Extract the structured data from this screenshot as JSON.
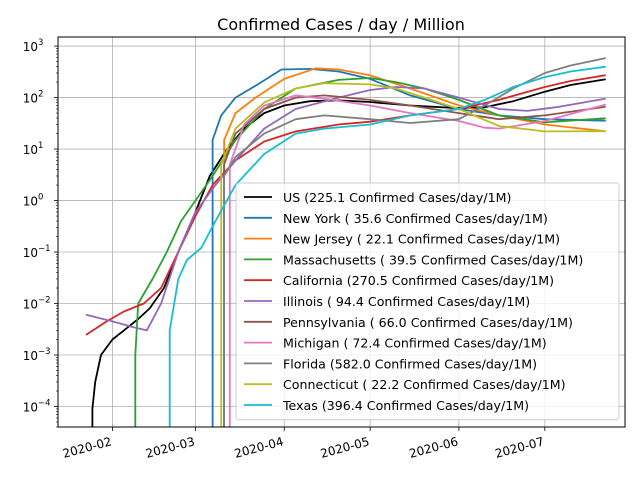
{
  "chart_data": {
    "type": "line",
    "title": "Confirmed Cases / day / Million",
    "xlabel": "",
    "ylabel": "",
    "yscale": "log",
    "ylim": [
      4e-05,
      1500
    ],
    "xlim": [
      "2020-01-13",
      "2020-07-29"
    ],
    "grid": true,
    "legend_position": "lower-right",
    "x_ticks": [
      {
        "date": "2020-02-01",
        "label": "2020-02"
      },
      {
        "date": "2020-03-01",
        "label": "2020-03"
      },
      {
        "date": "2020-04-01",
        "label": "2020-04"
      },
      {
        "date": "2020-05-01",
        "label": "2020-05"
      },
      {
        "date": "2020-06-01",
        "label": "2020-06"
      },
      {
        "date": "2020-07-01",
        "label": "2020-07"
      }
    ],
    "y_ticks": [
      {
        "value": 0.0001,
        "mantissa": "10",
        "exp": "−4"
      },
      {
        "value": 0.001,
        "mantissa": "10",
        "exp": "−3"
      },
      {
        "value": 0.01,
        "mantissa": "10",
        "exp": "−2"
      },
      {
        "value": 0.1,
        "mantissa": "10",
        "exp": "−1"
      },
      {
        "value": 1,
        "mantissa": "10",
        "exp": "0"
      },
      {
        "value": 10,
        "mantissa": "10",
        "exp": "1"
      },
      {
        "value": 100,
        "mantissa": "10",
        "exp": "2"
      },
      {
        "value": 1000,
        "mantissa": "10",
        "exp": "3"
      }
    ],
    "series": [
      {
        "name": "US (225.1 Confirmed Cases/day/1M)",
        "color": "#000000",
        "start_from_zero": "2020-01-25",
        "points": [
          [
            "2020-01-25",
            9e-05
          ],
          [
            "2020-01-26",
            0.0003
          ],
          [
            "2020-01-28",
            0.001
          ],
          [
            "2020-02-01",
            0.002
          ],
          [
            "2020-02-05",
            0.003
          ],
          [
            "2020-02-10",
            0.005
          ],
          [
            "2020-02-14",
            0.008
          ],
          [
            "2020-02-19",
            0.02
          ],
          [
            "2020-02-24",
            0.1
          ],
          [
            "2020-03-01",
            0.6
          ],
          [
            "2020-03-06",
            3
          ],
          [
            "2020-03-12",
            10
          ],
          [
            "2020-03-18",
            25
          ],
          [
            "2020-03-25",
            50
          ],
          [
            "2020-04-01",
            70
          ],
          [
            "2020-04-10",
            85
          ],
          [
            "2020-04-20",
            88
          ],
          [
            "2020-05-01",
            82
          ],
          [
            "2020-05-15",
            70
          ],
          [
            "2020-06-01",
            62
          ],
          [
            "2020-06-10",
            65
          ],
          [
            "2020-06-20",
            85
          ],
          [
            "2020-07-01",
            130
          ],
          [
            "2020-07-10",
            175
          ],
          [
            "2020-07-22",
            225
          ]
        ]
      },
      {
        "name": "New York ( 35.6 Confirmed Cases/day/1M)",
        "color": "#1f77b4",
        "start_from_zero": "2020-03-07",
        "points": [
          [
            "2020-03-07",
            15
          ],
          [
            "2020-03-10",
            45
          ],
          [
            "2020-03-15",
            100
          ],
          [
            "2020-03-22",
            170
          ],
          [
            "2020-03-31",
            350
          ],
          [
            "2020-04-10",
            360
          ],
          [
            "2020-04-20",
            320
          ],
          [
            "2020-05-01",
            230
          ],
          [
            "2020-05-15",
            110
          ],
          [
            "2020-06-01",
            60
          ],
          [
            "2020-06-15",
            45
          ],
          [
            "2020-07-01",
            38
          ],
          [
            "2020-07-22",
            35.6
          ]
        ]
      },
      {
        "name": "New Jersey ( 22.1 Confirmed Cases/day/1M)",
        "color": "#ff7f0e",
        "start_from_zero": "2020-03-11",
        "points": [
          [
            "2020-03-11",
            15
          ],
          [
            "2020-03-15",
            50
          ],
          [
            "2020-03-22",
            100
          ],
          [
            "2020-04-01",
            230
          ],
          [
            "2020-04-12",
            370
          ],
          [
            "2020-04-20",
            350
          ],
          [
            "2020-05-01",
            270
          ],
          [
            "2020-05-15",
            150
          ],
          [
            "2020-06-01",
            70
          ],
          [
            "2020-06-15",
            45
          ],
          [
            "2020-07-01",
            30
          ],
          [
            "2020-07-22",
            22.1
          ]
        ]
      },
      {
        "name": "Massachusetts ( 39.5 Confirmed Cases/day/1M)",
        "color": "#2ca02c",
        "start_from_zero": "2020-02-09",
        "points": [
          [
            "2020-02-09",
            0.001
          ],
          [
            "2020-02-10",
            0.01
          ],
          [
            "2020-02-15",
            0.03
          ],
          [
            "2020-02-20",
            0.1
          ],
          [
            "2020-02-25",
            0.4
          ],
          [
            "2020-03-01",
            1
          ],
          [
            "2020-03-07",
            3
          ],
          [
            "2020-03-15",
            15
          ],
          [
            "2020-03-25",
            60
          ],
          [
            "2020-04-05",
            150
          ],
          [
            "2020-04-20",
            220
          ],
          [
            "2020-05-01",
            240
          ],
          [
            "2020-05-10",
            200
          ],
          [
            "2020-05-20",
            150
          ],
          [
            "2020-06-01",
            90
          ],
          [
            "2020-06-15",
            45
          ],
          [
            "2020-07-01",
            33
          ],
          [
            "2020-07-22",
            39.5
          ]
        ]
      },
      {
        "name": "California (270.5 Confirmed Cases/day/1M)",
        "color": "#d62728",
        "points": [
          [
            "2020-01-23",
            0.0025
          ],
          [
            "2020-01-30",
            0.0045
          ],
          [
            "2020-02-05",
            0.007
          ],
          [
            "2020-02-12",
            0.01
          ],
          [
            "2020-02-18",
            0.02
          ],
          [
            "2020-02-24",
            0.1
          ],
          [
            "2020-03-01",
            0.5
          ],
          [
            "2020-03-07",
            2
          ],
          [
            "2020-03-15",
            6
          ],
          [
            "2020-03-25",
            14
          ],
          [
            "2020-04-05",
            22
          ],
          [
            "2020-04-20",
            30
          ],
          [
            "2020-05-01",
            34
          ],
          [
            "2020-05-15",
            45
          ],
          [
            "2020-06-01",
            60
          ],
          [
            "2020-06-15",
            90
          ],
          [
            "2020-07-01",
            160
          ],
          [
            "2020-07-10",
            210
          ],
          [
            "2020-07-22",
            270.5
          ]
        ]
      },
      {
        "name": "Illinois ( 94.4 Confirmed Cases/day/1M)",
        "color": "#9467bd",
        "points": [
          [
            "2020-01-23",
            0.006
          ],
          [
            "2020-02-01",
            0.0045
          ],
          [
            "2020-02-08",
            0.0035
          ],
          [
            "2020-02-13",
            0.003
          ],
          [
            "2020-02-18",
            0.01
          ],
          [
            "2020-02-24",
            0.1
          ],
          [
            "2020-03-01",
            0.6
          ],
          [
            "2020-03-08",
            2
          ],
          [
            "2020-03-15",
            6
          ],
          [
            "2020-03-25",
            25
          ],
          [
            "2020-04-05",
            60
          ],
          [
            "2020-04-20",
            100
          ],
          [
            "2020-05-01",
            140
          ],
          [
            "2020-05-10",
            160
          ],
          [
            "2020-05-20",
            150
          ],
          [
            "2020-06-01",
            100
          ],
          [
            "2020-06-15",
            60
          ],
          [
            "2020-06-25",
            55
          ],
          [
            "2020-07-05",
            65
          ],
          [
            "2020-07-22",
            94.4
          ]
        ]
      },
      {
        "name": "Pennsylvania ( 66.0 Confirmed Cases/day/1M)",
        "color": "#8c564b",
        "start_from_zero": "2020-03-11",
        "points": [
          [
            "2020-03-11",
            5
          ],
          [
            "2020-03-15",
            20
          ],
          [
            "2020-03-25",
            60
          ],
          [
            "2020-04-05",
            100
          ],
          [
            "2020-04-15",
            110
          ],
          [
            "2020-05-01",
            90
          ],
          [
            "2020-05-15",
            70
          ],
          [
            "2020-06-01",
            50
          ],
          [
            "2020-06-15",
            38
          ],
          [
            "2020-07-01",
            45
          ],
          [
            "2020-07-22",
            66
          ]
        ]
      },
      {
        "name": "Michigan ( 72.4 Confirmed Cases/day/1M)",
        "color": "#e377c2",
        "start_from_zero": "2020-03-13",
        "points": [
          [
            "2020-03-13",
            5
          ],
          [
            "2020-03-18",
            30
          ],
          [
            "2020-03-25",
            70
          ],
          [
            "2020-04-05",
            110
          ],
          [
            "2020-04-15",
            95
          ],
          [
            "2020-05-01",
            70
          ],
          [
            "2020-05-15",
            50
          ],
          [
            "2020-06-01",
            35
          ],
          [
            "2020-06-10",
            26
          ],
          [
            "2020-06-15",
            25
          ],
          [
            "2020-07-01",
            35
          ],
          [
            "2020-07-22",
            72.4
          ]
        ]
      },
      {
        "name": "Florida (582.0 Confirmed Cases/day/1M)",
        "color": "#7f7f7f",
        "start_from_zero": "2020-03-11",
        "points": [
          [
            "2020-03-11",
            3
          ],
          [
            "2020-03-15",
            7
          ],
          [
            "2020-03-25",
            20
          ],
          [
            "2020-04-05",
            38
          ],
          [
            "2020-04-15",
            45
          ],
          [
            "2020-05-01",
            38
          ],
          [
            "2020-05-15",
            32
          ],
          [
            "2020-06-01",
            38
          ],
          [
            "2020-06-10",
            70
          ],
          [
            "2020-06-20",
            150
          ],
          [
            "2020-07-01",
            300
          ],
          [
            "2020-07-10",
            420
          ],
          [
            "2020-07-22",
            582
          ]
        ]
      },
      {
        "name": "Connecticut ( 22.2 Confirmed Cases/day/1M)",
        "color": "#bcbd22",
        "start_from_zero": "2020-03-10",
        "points": [
          [
            "2020-03-10",
            5
          ],
          [
            "2020-03-15",
            25
          ],
          [
            "2020-03-25",
            80
          ],
          [
            "2020-04-05",
            150
          ],
          [
            "2020-04-15",
            190
          ],
          [
            "2020-05-01",
            180
          ],
          [
            "2020-05-10",
            150
          ],
          [
            "2020-05-20",
            100
          ],
          [
            "2020-06-01",
            60
          ],
          [
            "2020-06-15",
            28
          ],
          [
            "2020-07-01",
            22
          ],
          [
            "2020-07-22",
            22.2
          ]
        ]
      },
      {
        "name": "Texas (396.4 Confirmed Cases/day/1M)",
        "color": "#17becf",
        "start_from_zero": "2020-02-21",
        "points": [
          [
            "2020-02-21",
            0.003
          ],
          [
            "2020-02-24",
            0.03
          ],
          [
            "2020-02-27",
            0.07
          ],
          [
            "2020-03-03",
            0.12
          ],
          [
            "2020-03-08",
            0.4
          ],
          [
            "2020-03-15",
            2
          ],
          [
            "2020-03-25",
            8
          ],
          [
            "2020-04-05",
            20
          ],
          [
            "2020-04-15",
            25
          ],
          [
            "2020-05-01",
            30
          ],
          [
            "2020-05-15",
            45
          ],
          [
            "2020-06-01",
            60
          ],
          [
            "2020-06-10",
            90
          ],
          [
            "2020-06-20",
            160
          ],
          [
            "2020-07-01",
            250
          ],
          [
            "2020-07-10",
            320
          ],
          [
            "2020-07-22",
            396.4
          ]
        ]
      }
    ]
  }
}
